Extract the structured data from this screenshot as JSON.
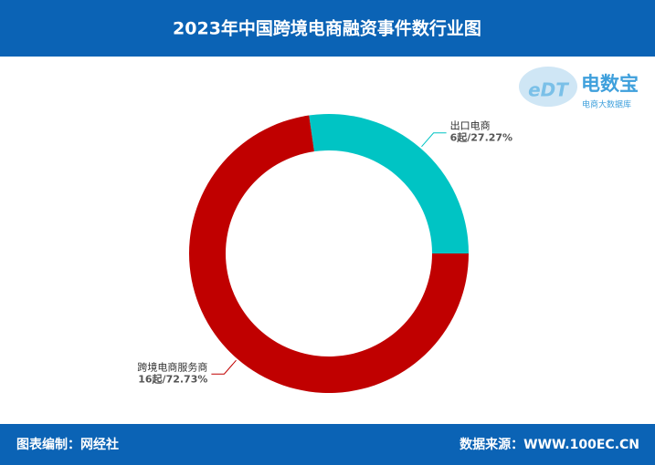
{
  "chart_data": {
    "type": "donut",
    "title": "2023年中国跨境电商融资事件数行业图",
    "categories": [
      "出口电商",
      "跨境电商服务商"
    ],
    "values": [
      6,
      16
    ],
    "value_labels": [
      "6起/27.27%",
      "16起/72.73%"
    ],
    "colors": [
      "#00c4c4",
      "#c00000"
    ]
  },
  "logo": {
    "mark": "eDT",
    "name": "电数宝",
    "tagline": "电商大数据库"
  },
  "footer": {
    "left": "图表编制：网经社",
    "right": "数据来源：WWW.100EC.CN"
  }
}
